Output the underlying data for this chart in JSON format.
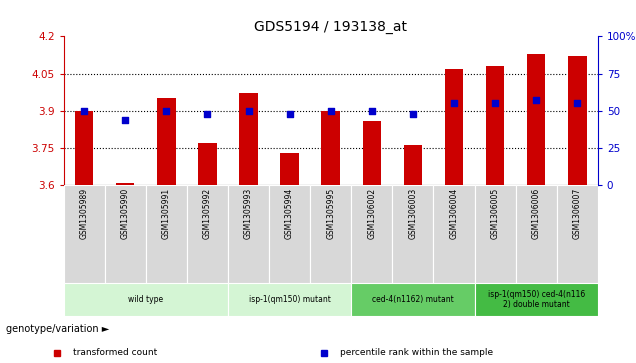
{
  "title": "GDS5194 / 193138_at",
  "samples": [
    "GSM1305989",
    "GSM1305990",
    "GSM1305991",
    "GSM1305992",
    "GSM1305993",
    "GSM1305994",
    "GSM1305995",
    "GSM1306002",
    "GSM1306003",
    "GSM1306004",
    "GSM1306005",
    "GSM1306006",
    "GSM1306007"
  ],
  "bar_values": [
    3.9,
    3.61,
    3.95,
    3.77,
    3.97,
    3.73,
    3.9,
    3.86,
    3.76,
    4.07,
    4.08,
    4.13,
    4.12
  ],
  "dot_values": [
    50,
    44,
    50,
    48,
    50,
    48,
    50,
    50,
    48,
    55,
    55,
    57,
    55
  ],
  "bar_color": "#cc0000",
  "dot_color": "#0000cc",
  "ylim_left": [
    3.6,
    4.2
  ],
  "ylim_right": [
    0,
    100
  ],
  "yticks_left": [
    3.6,
    3.75,
    3.9,
    4.05,
    4.2
  ],
  "yticks_right": [
    0,
    25,
    50,
    75,
    100
  ],
  "ytick_labels_left": [
    "3.6",
    "3.75",
    "3.9",
    "4.05",
    "4.2"
  ],
  "ytick_labels_right": [
    "0",
    "25",
    "50",
    "75",
    "100%"
  ],
  "hlines": [
    3.75,
    3.9,
    4.05
  ],
  "groups": [
    {
      "label": "wild type",
      "start": 0,
      "end": 3,
      "color": "#d4f5d4"
    },
    {
      "label": "isp-1(qm150) mutant",
      "start": 4,
      "end": 6,
      "color": "#d4f5d4"
    },
    {
      "label": "ced-4(n1162) mutant",
      "start": 7,
      "end": 9,
      "color": "#66cc66"
    },
    {
      "label": "isp-1(qm150) ced-4(n116\n2) double mutant",
      "start": 10,
      "end": 12,
      "color": "#44bb44"
    }
  ],
  "legend_items": [
    {
      "label": "transformed count",
      "color": "#cc0000",
      "marker": "s"
    },
    {
      "label": "percentile rank within the sample",
      "color": "#0000cc",
      "marker": "s"
    }
  ],
  "genotype_label": "genotype/variation",
  "background_color": "#ffffff",
  "plot_bg_color": "#ffffff",
  "left_axis_color": "#cc0000",
  "right_axis_color": "#0000cc",
  "sample_box_color": "#d8d8d8",
  "bar_width": 0.45
}
